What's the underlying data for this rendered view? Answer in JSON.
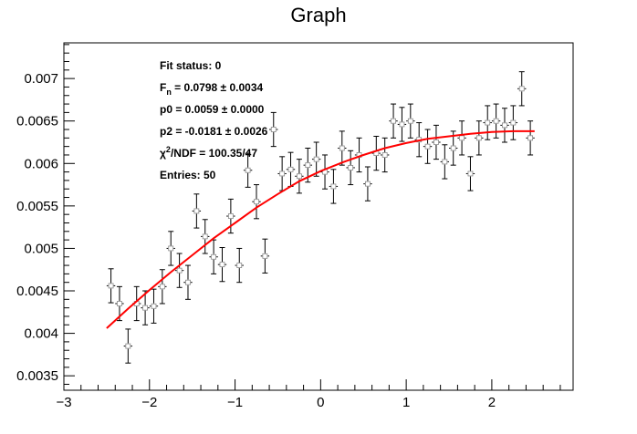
{
  "chart_data": {
    "type": "scatter",
    "title": "Graph",
    "xlabel": "",
    "ylabel": "",
    "xlim": [
      -3,
      2.95
    ],
    "ylim": [
      3.33,
      7.42
    ],
    "x_ticks": [
      {
        "value": -3,
        "label": "−3"
      },
      {
        "value": -2,
        "label": "−2"
      },
      {
        "value": -1,
        "label": "−1"
      },
      {
        "value": 0,
        "label": "0"
      },
      {
        "value": 1,
        "label": "1"
      },
      {
        "value": 2,
        "label": "2"
      }
    ],
    "y_ticks": [
      {
        "value": 3.5,
        "label": "0.0035"
      },
      {
        "value": 4.0,
        "label": "0.004"
      },
      {
        "value": 4.5,
        "label": "0.0045"
      },
      {
        "value": 5.0,
        "label": "0.005"
      },
      {
        "value": 5.5,
        "label": "0.0055"
      },
      {
        "value": 6.0,
        "label": "0.006"
      },
      {
        "value": 6.5,
        "label": "0.0065"
      },
      {
        "value": 7.0,
        "label": "0.007"
      }
    ],
    "y_unit_note": "y values in units of 1e-3",
    "series": [
      {
        "style": "points-with-errors",
        "color": "#000000",
        "x": [
          -2.45,
          -2.35,
          -2.25,
          -2.15,
          -2.05,
          -1.95,
          -1.85,
          -1.75,
          -1.65,
          -1.55,
          -1.45,
          -1.35,
          -1.25,
          -1.15,
          -1.05,
          -0.95,
          -0.85,
          -0.75,
          -0.65,
          -0.55,
          -0.45,
          -0.35,
          -0.25,
          -0.15,
          -0.05,
          0.05,
          0.15,
          0.25,
          0.35,
          0.45,
          0.55,
          0.65,
          0.75,
          0.85,
          0.95,
          1.05,
          1.15,
          1.25,
          1.35,
          1.45,
          1.55,
          1.65,
          1.75,
          1.85,
          1.95,
          2.05,
          2.15,
          2.25,
          2.35,
          2.45
        ],
        "y": [
          4.56,
          4.35,
          3.85,
          4.35,
          4.3,
          4.32,
          4.55,
          5.0,
          4.74,
          4.6,
          5.44,
          5.14,
          4.9,
          4.81,
          5.38,
          4.8,
          5.92,
          5.55,
          4.91,
          6.4,
          5.88,
          5.93,
          5.85,
          5.98,
          6.05,
          5.9,
          5.73,
          6.18,
          5.95,
          6.1,
          5.76,
          6.12,
          6.1,
          6.5,
          6.46,
          6.5,
          6.28,
          6.2,
          6.25,
          6.02,
          6.18,
          6.3,
          5.88,
          6.3,
          6.48,
          6.5,
          6.45,
          6.48,
          6.88,
          6.3
        ],
        "yerr": [
          0.2,
          0.2,
          0.2,
          0.2,
          0.2,
          0.2,
          0.2,
          0.2,
          0.2,
          0.2,
          0.2,
          0.2,
          0.2,
          0.2,
          0.2,
          0.2,
          0.2,
          0.2,
          0.2,
          0.2,
          0.2,
          0.2,
          0.2,
          0.2,
          0.2,
          0.2,
          0.2,
          0.2,
          0.2,
          0.2,
          0.2,
          0.2,
          0.2,
          0.2,
          0.2,
          0.2,
          0.2,
          0.2,
          0.2,
          0.2,
          0.2,
          0.2,
          0.2,
          0.2,
          0.2,
          0.2,
          0.2,
          0.2,
          0.2,
          0.2
        ],
        "xerr": 0.05
      },
      {
        "style": "fit-line",
        "color": "#ff0000",
        "x": [
          -2.5,
          -2.25,
          -2.0,
          -1.75,
          -1.5,
          -1.25,
          -1.0,
          -0.75,
          -0.5,
          -0.25,
          0.0,
          0.25,
          0.5,
          0.75,
          1.0,
          1.25,
          1.5,
          1.75,
          2.0,
          2.25,
          2.5
        ],
        "y": [
          4.06,
          4.29,
          4.51,
          4.72,
          4.92,
          5.12,
          5.3,
          5.48,
          5.64,
          5.79,
          5.91,
          6.01,
          6.1,
          6.18,
          6.24,
          6.29,
          6.32,
          6.35,
          6.37,
          6.38,
          6.38
        ]
      }
    ],
    "stats_box": {
      "lines": [
        {
          "kind": "plain",
          "text": "Fit status: 0"
        },
        {
          "kind": "sub",
          "base": "F",
          "sub": "n",
          "rest": " = 0.0798   ± 0.0034"
        },
        {
          "kind": "plain",
          "text": "p0 = 0.0059   ± 0.0000"
        },
        {
          "kind": "plain",
          "text": "p2 = -0.0181  ± 0.0026"
        },
        {
          "kind": "sup",
          "base": "χ",
          "sup": "2",
          "rest": "/NDF = 100.35/47"
        },
        {
          "kind": "plain",
          "text": "Entries: 50"
        }
      ]
    }
  }
}
